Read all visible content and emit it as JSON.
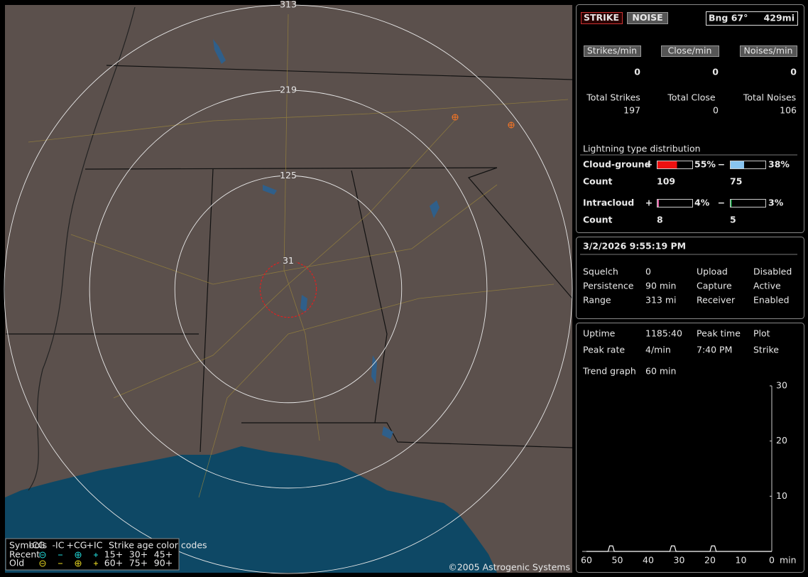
{
  "map": {
    "rings": [
      313,
      219,
      125,
      31
    ],
    "copyright": "©2005 Astrogenic Systems",
    "legend": {
      "title": "Symbols",
      "types": [
        "-CG",
        "-IC",
        "+CG",
        "+IC"
      ],
      "age_title": "Strike age color codes",
      "rows": [
        "Recent",
        "Old"
      ],
      "recent_ages": [
        "15+",
        "30+",
        "45+"
      ],
      "old_ages": [
        "60+",
        "75+",
        "90+"
      ]
    }
  },
  "status": {
    "strike_button": "STRIKE",
    "noise_button": "NOISE",
    "bearing": "Bng 67°",
    "distance": "429mi"
  },
  "rates": [
    {
      "label": "Strikes/min",
      "value": 0
    },
    {
      "label": "Close/min",
      "value": 0
    },
    {
      "label": "Noises/min",
      "value": 0
    }
  ],
  "totals": [
    {
      "label": "Total Strikes",
      "value": 197
    },
    {
      "label": "Total Close",
      "value": 0
    },
    {
      "label": "Total Noises",
      "value": 106
    }
  ],
  "distribution": {
    "title": "Lightning type distribution",
    "rows": [
      {
        "name": "Cloud-ground",
        "pos_sign": "+",
        "pos": {
          "value": 55,
          "label": "55%"
        },
        "neg_sign": "−",
        "neg": {
          "value": 38,
          "label": "38%"
        },
        "pos_color": "#ee1111",
        "neg_color": "#88c4f0",
        "count_label": "Count",
        "pos_count": 109,
        "neg_count": 75
      },
      {
        "name": "Intracloud",
        "pos_sign": "+",
        "pos": {
          "value": 4,
          "label": "4%"
        },
        "neg_sign": "−",
        "neg": {
          "value": 3,
          "label": "3%"
        },
        "pos_color": "#e05aa0",
        "neg_color": "#22bb55",
        "count_label": "Count",
        "pos_count": 8,
        "neg_count": 5
      }
    ]
  },
  "clock": {
    "datetime": "3/2/2026 9:55:19 PM",
    "settings": [
      [
        "Squelch",
        0,
        "Upload",
        "Disabled"
      ],
      [
        "Persistence",
        "90 min",
        "Capture",
        "Active"
      ],
      [
        "Range",
        "313 mi",
        "Receiver",
        "Enabled"
      ]
    ]
  },
  "stats": {
    "rows": [
      [
        "Uptime",
        "1185:40",
        "Peak time",
        "Plot"
      ],
      [
        "Peak rate",
        "4/min",
        "7:40 PM",
        "Strike"
      ]
    ],
    "trend_label": "Trend graph",
    "trend_window": "60 min"
  },
  "trend_chart": {
    "type": "line",
    "xlabel": "min",
    "color": "#ffffff",
    "x": [
      60,
      53,
      52.5,
      51.5,
      51,
      33,
      32.5,
      31.5,
      31,
      20,
      19.5,
      18.5,
      18,
      0
    ],
    "values": [
      0,
      0,
      1,
      1,
      0,
      0,
      1,
      1,
      0,
      0,
      1,
      1,
      0,
      0
    ],
    "xlim": [
      60,
      0
    ],
    "ylim": [
      0,
      30
    ],
    "xticks": [
      60,
      50,
      40,
      30,
      20,
      10,
      0
    ],
    "yticks": [
      30,
      20,
      10
    ]
  }
}
